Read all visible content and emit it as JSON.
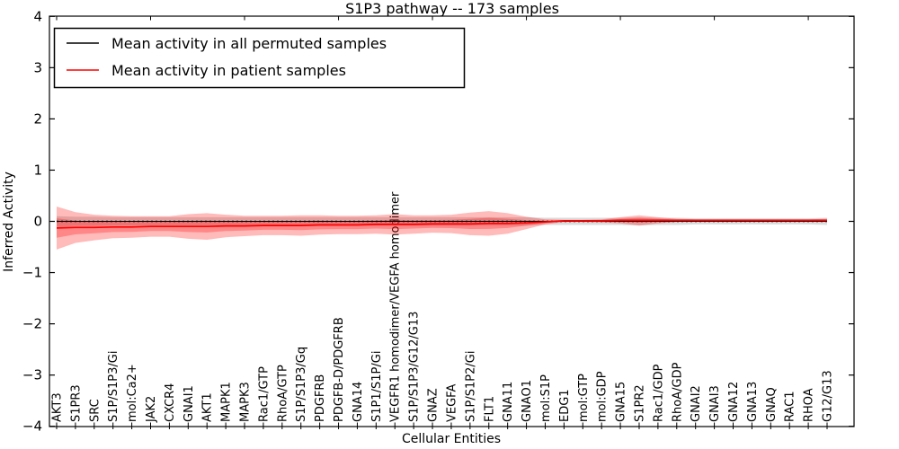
{
  "title": "S1P3 pathway -- 173 samples",
  "axes": {
    "xlabel": "Cellular Entities",
    "ylabel": "Inferred Activity",
    "ylim": [
      -4,
      4
    ],
    "yticks": [
      4,
      3,
      2,
      1,
      0,
      -1,
      -2,
      -3,
      -4
    ]
  },
  "legend": [
    {
      "label": "Mean activity in all permuted samples",
      "color": "#000000"
    },
    {
      "label": "Mean activity in patient samples",
      "color": "#ff0000"
    }
  ],
  "colors": {
    "patient_line": "#ff0000",
    "permuted_line": "#000000",
    "patient_band": "#ff0000",
    "permuted_band": "#888888",
    "zero_line": "#000000"
  },
  "chart_data": {
    "type": "line",
    "title": "S1P3 pathway -- 173 samples",
    "xlabel": "Cellular Entities",
    "ylabel": "Inferred Activity",
    "ylim": [
      -4,
      4
    ],
    "grid": false,
    "legend_position": "upper left",
    "categories": [
      "AKT3",
      "S1PR3",
      "SRC",
      "S1P/S1P3/Gi",
      "mol:Ca2+",
      "JAK2",
      "CXCR4",
      "GNAI1",
      "AKT1",
      "MAPK1",
      "MAPK3",
      "Rac1/GTP",
      "RhoA/GTP",
      "S1P/S1P3/Gq",
      "PDGFRB",
      "PDGFB-D/PDGFRB",
      "GNA14",
      "S1P1/S1P/Gi",
      "VEGFR1 homodimer/VEGFA homodimer",
      "S1P/S1P3/G12/G13",
      "GNAZ",
      "VEGFA",
      "S1P/S1P2/Gi",
      "FLT1",
      "GNA11",
      "GNAO1",
      "mol:S1P",
      "EDG1",
      "mol:GTP",
      "mol:GDP",
      "GNA15",
      "S1PR2",
      "Rac1/GDP",
      "RhoA/GDP",
      "GNAI2",
      "GNAI3",
      "GNA12",
      "GNA13",
      "GNAQ",
      "RAC1",
      "RHOA",
      "G12/G13"
    ],
    "series": [
      {
        "name": "Mean activity in all permuted samples",
        "color": "#000000",
        "values": [
          0,
          0,
          0,
          0,
          0,
          0,
          0,
          0,
          0,
          0,
          0,
          0,
          0,
          0,
          0,
          0,
          0,
          0,
          0,
          0,
          0,
          0,
          0,
          0,
          0,
          0,
          0,
          0,
          0,
          0,
          0,
          0,
          0,
          0,
          0,
          0,
          0,
          0,
          0,
          0,
          0,
          0
        ],
        "std": [
          0.1,
          0.09,
          0.09,
          0.08,
          0.08,
          0.08,
          0.08,
          0.08,
          0.08,
          0.08,
          0.08,
          0.08,
          0.08,
          0.08,
          0.08,
          0.08,
          0.08,
          0.08,
          0.08,
          0.08,
          0.08,
          0.08,
          0.08,
          0.08,
          0.08,
          0.08,
          0.07,
          0.07,
          0.07,
          0.07,
          0.07,
          0.08,
          0.07,
          0.07,
          0.06,
          0.06,
          0.06,
          0.06,
          0.06,
          0.06,
          0.06,
          0.07
        ]
      },
      {
        "name": "Mean activity in patient samples",
        "color": "#ff0000",
        "values": [
          -0.13,
          -0.12,
          -0.12,
          -0.11,
          -0.11,
          -0.1,
          -0.1,
          -0.1,
          -0.1,
          -0.09,
          -0.09,
          -0.08,
          -0.08,
          -0.08,
          -0.07,
          -0.07,
          -0.07,
          -0.06,
          -0.06,
          -0.06,
          -0.05,
          -0.05,
          -0.05,
          -0.04,
          -0.04,
          -0.03,
          -0.01,
          0.01,
          0.01,
          0.01,
          0.02,
          0.02,
          0.02,
          0.02,
          0.02,
          0.02,
          0.02,
          0.02,
          0.02,
          0.02,
          0.02,
          0.02
        ],
        "std": [
          0.42,
          0.3,
          0.25,
          0.22,
          0.21,
          0.2,
          0.2,
          0.24,
          0.26,
          0.22,
          0.2,
          0.19,
          0.19,
          0.2,
          0.19,
          0.18,
          0.18,
          0.18,
          0.2,
          0.18,
          0.17,
          0.18,
          0.22,
          0.24,
          0.2,
          0.12,
          0.05,
          0.02,
          0.02,
          0.03,
          0.06,
          0.1,
          0.06,
          0.03,
          0.02,
          0.02,
          0.02,
          0.02,
          0.02,
          0.02,
          0.02,
          0.03
        ]
      }
    ],
    "zero_line": {
      "value": 0,
      "style": "dotted",
      "color": "#000000"
    }
  }
}
